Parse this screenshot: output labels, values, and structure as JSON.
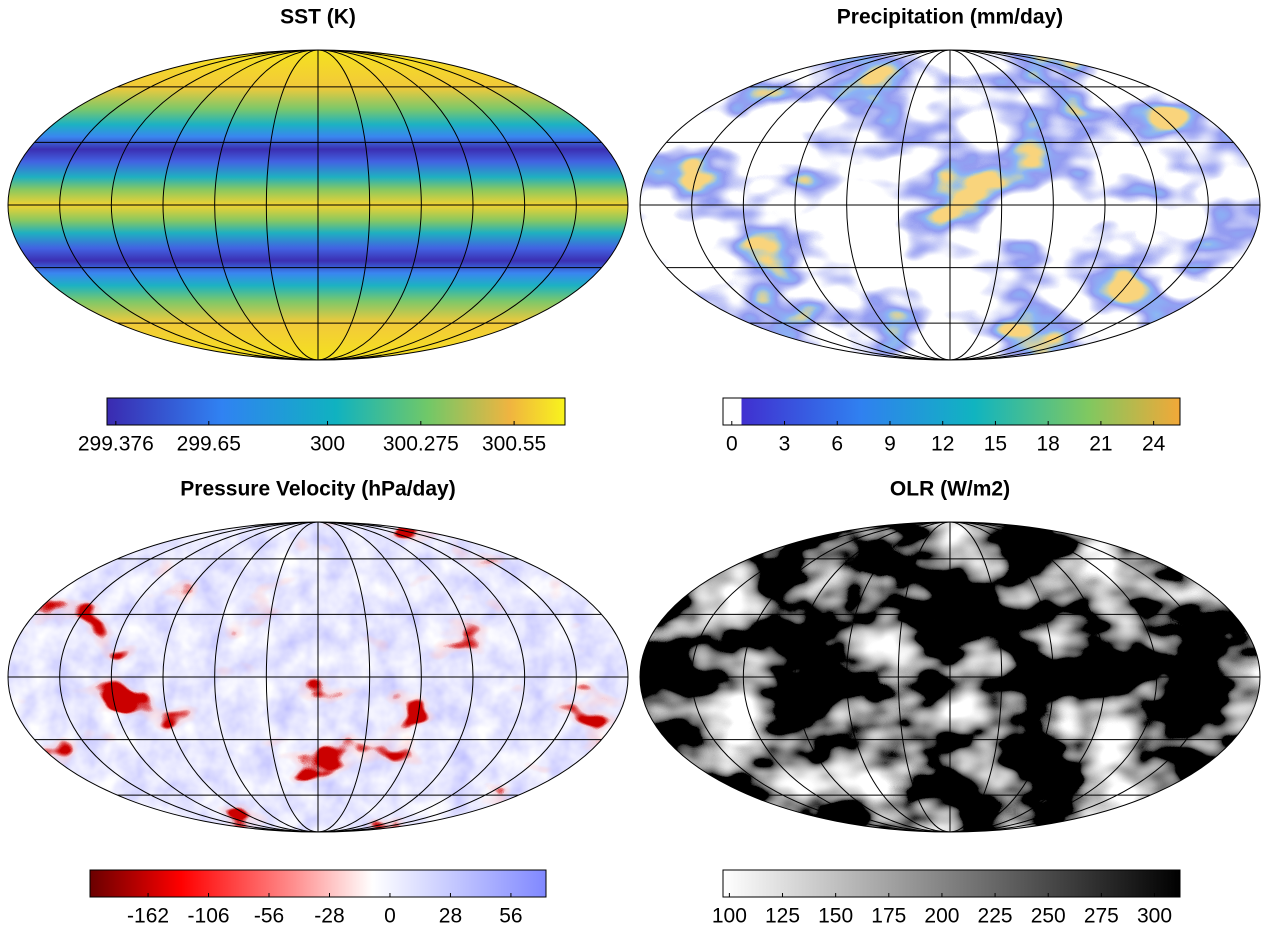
{
  "chart_data": [
    {
      "type": "map",
      "title": "SST (K)",
      "colorbar": {
        "lim": [
          299.35,
          300.7
        ],
        "ticks": [
          299.376,
          299.65,
          300,
          300.275,
          300.55
        ]
      }
    },
    {
      "type": "map",
      "title": "Precipitation (mm/day)",
      "colorbar": {
        "lim": [
          -0.5,
          25.5
        ],
        "ticks": [
          0,
          3,
          6,
          9,
          12,
          15,
          18,
          21,
          24
        ]
      }
    },
    {
      "type": "map",
      "title": "Pressure Velocity (hPa/day)",
      "colorbar": {
        "scale": "levels",
        "ticks": [
          -162,
          -106,
          -56,
          -28,
          0,
          28,
          56
        ]
      }
    },
    {
      "type": "map",
      "title": "OLR (W/m2)",
      "colorbar": {
        "lim": [
          97,
          312
        ],
        "ticks": [
          100,
          125,
          150,
          175,
          200,
          225,
          250,
          275,
          300
        ]
      }
    }
  ]
}
